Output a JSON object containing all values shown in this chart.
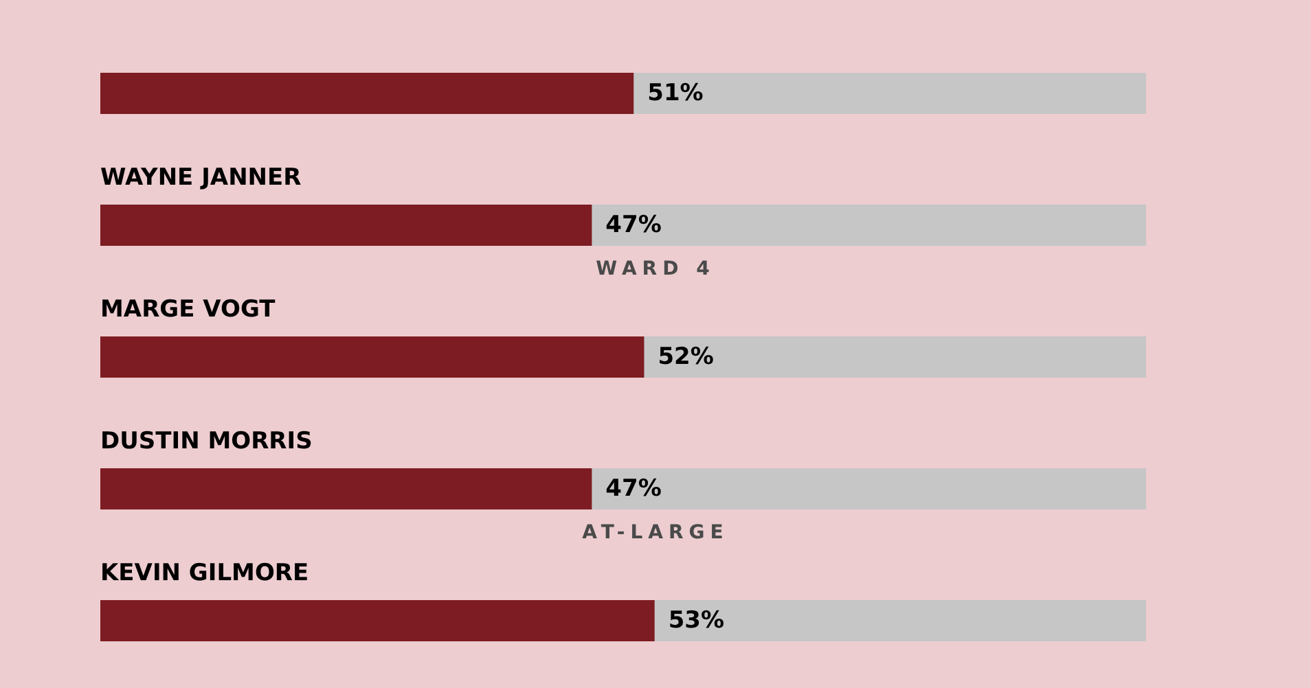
{
  "chart_data": {
    "type": "bar",
    "orientation": "horizontal",
    "categories": [
      null,
      "WAYNE JANNER",
      "MARGE VOGT",
      "DUSTIN MORRIS",
      "KEVIN GILMORE"
    ],
    "values": [
      51,
      47,
      52,
      47,
      53
    ],
    "color": "#7d1c22",
    "xlim": [
      0,
      100
    ],
    "tick_labels": false,
    "value_labels": [
      "51%",
      "47%",
      "52%",
      "47%",
      "53%"
    ],
    "annotations": [
      "WARD 4",
      "AT-LARGE"
    ]
  }
}
